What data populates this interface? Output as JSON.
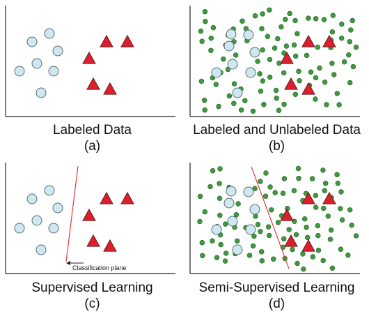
{
  "colors": {
    "labeled_circle_fill": "#cfe8ef",
    "labeled_circle_stroke": "#5a6b73",
    "triangle_fill": "#dd1f2d",
    "triangle_stroke": "#6a1a1a",
    "unlabeled_fill": "#3f9a3f",
    "unlabeled_stroke": "#1f5a1f",
    "boundary": "#e03c3c",
    "axis": "#222222"
  },
  "panels": [
    {
      "id": "a",
      "title": "Labeled Data",
      "letter": "(a)",
      "show_unlabeled": false,
      "boundary": "none"
    },
    {
      "id": "b",
      "title": "Labeled and Unlabeled Data",
      "letter": "(b)",
      "show_unlabeled": true,
      "boundary": "none"
    },
    {
      "id": "c",
      "title": "Supervised Learning",
      "letter": "(c)",
      "show_unlabeled": false,
      "boundary": "supervised",
      "annotation": "Classification plane"
    },
    {
      "id": "d",
      "title": "Semi-Supervised Learning",
      "letter": "(d)",
      "show_unlabeled": true,
      "boundary": "semi-supervised"
    }
  ]
}
